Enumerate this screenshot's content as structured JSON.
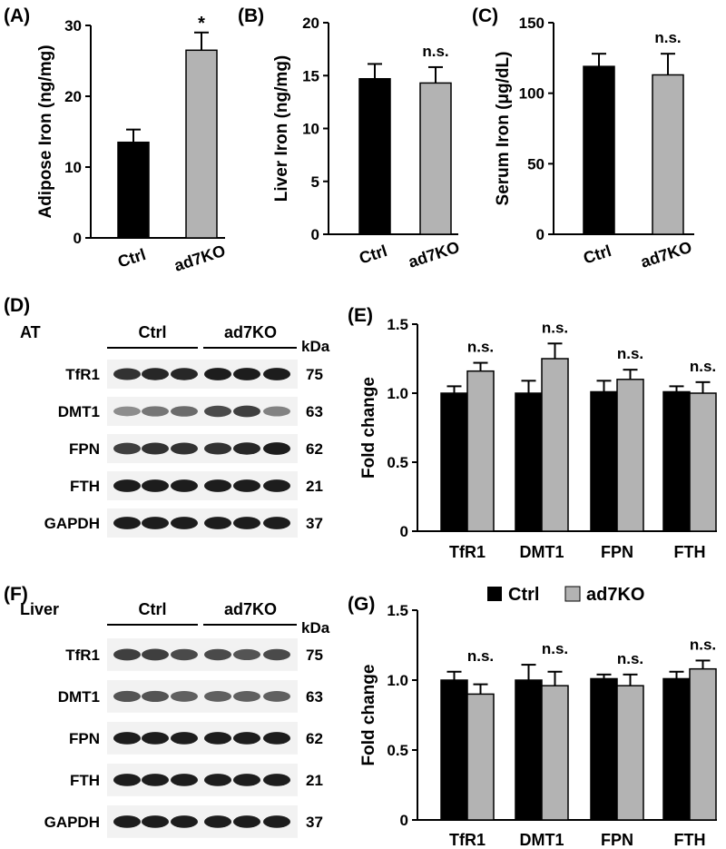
{
  "colors": {
    "ctrl": "#000000",
    "ad7ko": "#b3b3b3",
    "blot_bg": "#f2f2f2",
    "band": "#111111"
  },
  "legend": {
    "ctrl": "Ctrl",
    "ad7ko": "ad7KO"
  },
  "panels": {
    "A": {
      "label": "(A)"
    },
    "B": {
      "label": "(B)"
    },
    "C": {
      "label": "(C)"
    },
    "D": {
      "label": "(D)"
    },
    "E": {
      "label": "(E)"
    },
    "F": {
      "label": "(F)"
    },
    "G": {
      "label": "(G)"
    }
  },
  "chart_data": [
    {
      "id": "A",
      "type": "bar",
      "title": "",
      "xlabel": "",
      "ylabel": "Adipose Iron (ng/mg)",
      "categories": [
        "Ctrl",
        "ad7KO"
      ],
      "values": [
        13.5,
        26.5
      ],
      "errors": [
        1.8,
        2.5
      ],
      "ylim": [
        0,
        30
      ],
      "yticks": [
        0,
        10,
        20,
        30
      ],
      "annotations": [
        "",
        "*"
      ]
    },
    {
      "id": "B",
      "type": "bar",
      "title": "",
      "xlabel": "",
      "ylabel": "Liver Iron (ng/mg)",
      "categories": [
        "Ctrl",
        "ad7KO"
      ],
      "values": [
        14.7,
        14.3
      ],
      "errors": [
        1.4,
        1.5
      ],
      "ylim": [
        0,
        20
      ],
      "yticks": [
        0,
        5,
        10,
        15,
        20
      ],
      "annotations": [
        "",
        "n.s."
      ]
    },
    {
      "id": "C",
      "type": "bar",
      "title": "",
      "xlabel": "",
      "ylabel": "Serum Iron (μg/dL)",
      "categories": [
        "Ctrl",
        "ad7KO"
      ],
      "values": [
        119,
        113
      ],
      "errors": [
        9,
        15
      ],
      "ylim": [
        0,
        150
      ],
      "yticks": [
        0,
        50,
        100,
        150
      ],
      "annotations": [
        "",
        "n.s."
      ]
    },
    {
      "id": "E",
      "type": "bar",
      "title": "",
      "xlabel": "",
      "ylabel": "Fold change",
      "categories": [
        "TfR1",
        "DMT1",
        "FPN",
        "FTH"
      ],
      "series": [
        {
          "name": "Ctrl",
          "values": [
            1.0,
            1.0,
            1.01,
            1.01
          ],
          "errors": [
            0.05,
            0.09,
            0.08,
            0.04
          ]
        },
        {
          "name": "ad7KO",
          "values": [
            1.16,
            1.25,
            1.1,
            1.0
          ],
          "errors": [
            0.06,
            0.11,
            0.07,
            0.08
          ]
        }
      ],
      "ylim": [
        0,
        1.5
      ],
      "yticks": [
        0,
        0.5,
        1.0,
        1.5
      ],
      "ytick_labels": [
        "0",
        "0.5",
        "1.0",
        "1.5"
      ],
      "annotations": [
        "n.s.",
        "n.s.",
        "n.s.",
        "n.s."
      ]
    },
    {
      "id": "G",
      "type": "bar",
      "title": "",
      "xlabel": "",
      "ylabel": "Fold change",
      "categories": [
        "TfR1",
        "DMT1",
        "FPN",
        "FTH"
      ],
      "series": [
        {
          "name": "Ctrl",
          "values": [
            1.0,
            1.0,
            1.01,
            1.01
          ],
          "errors": [
            0.06,
            0.11,
            0.03,
            0.05
          ]
        },
        {
          "name": "ad7KO",
          "values": [
            0.9,
            0.96,
            0.96,
            1.08
          ],
          "errors": [
            0.07,
            0.1,
            0.08,
            0.06
          ]
        }
      ],
      "ylim": [
        0,
        1.5
      ],
      "yticks": [
        0,
        0.5,
        1.0,
        1.5
      ],
      "ytick_labels": [
        "0",
        "0.5",
        "1.0",
        "1.5"
      ],
      "annotations": [
        "n.s.",
        "n.s.",
        "n.s.",
        "n.s."
      ],
      "legend": [
        "Ctrl",
        "ad7KO"
      ]
    }
  ],
  "blots": [
    {
      "id": "D",
      "tissue": "AT",
      "groups": [
        "Ctrl",
        "ad7KO"
      ],
      "unit": "kDa",
      "rows": [
        {
          "protein": "TfR1",
          "kda": "75",
          "intensity": [
            0.85,
            0.9,
            0.9,
            0.95,
            0.95,
            0.95
          ]
        },
        {
          "protein": "DMT1",
          "kda": "63",
          "intensity": [
            0.45,
            0.55,
            0.6,
            0.75,
            0.8,
            0.5
          ]
        },
        {
          "protein": "FPN",
          "kda": "62",
          "intensity": [
            0.8,
            0.85,
            0.85,
            0.85,
            0.9,
            0.95
          ]
        },
        {
          "protein": "FTH",
          "kda": "21",
          "intensity": [
            0.95,
            0.95,
            0.95,
            0.95,
            0.95,
            0.95
          ]
        },
        {
          "protein": "GAPDH",
          "kda": "37",
          "intensity": [
            0.95,
            0.95,
            0.95,
            0.95,
            0.95,
            0.95
          ]
        }
      ]
    },
    {
      "id": "F",
      "tissue": "Liver",
      "groups": [
        "Ctrl",
        "ad7KO"
      ],
      "unit": "kDa",
      "rows": [
        {
          "protein": "TfR1",
          "kda": "75",
          "intensity": [
            0.8,
            0.8,
            0.75,
            0.75,
            0.7,
            0.75
          ]
        },
        {
          "protein": "DMT1",
          "kda": "63",
          "intensity": [
            0.7,
            0.7,
            0.65,
            0.65,
            0.65,
            0.65
          ]
        },
        {
          "protein": "FPN",
          "kda": "62",
          "intensity": [
            0.95,
            0.95,
            0.95,
            0.95,
            0.95,
            0.95
          ]
        },
        {
          "protein": "FTH",
          "kda": "21",
          "intensity": [
            0.95,
            0.95,
            0.95,
            0.95,
            0.95,
            0.95
          ]
        },
        {
          "protein": "GAPDH",
          "kda": "37",
          "intensity": [
            0.95,
            0.95,
            0.95,
            0.95,
            0.95,
            0.95
          ]
        }
      ]
    }
  ]
}
